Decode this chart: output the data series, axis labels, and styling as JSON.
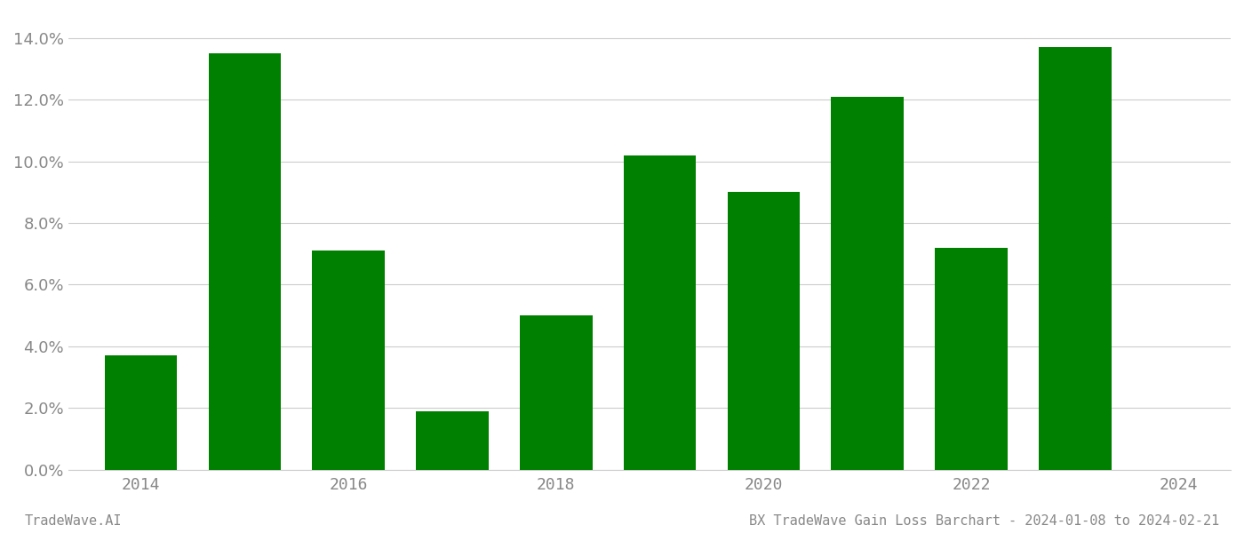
{
  "years": [
    2014,
    2015,
    2016,
    2017,
    2018,
    2019,
    2020,
    2021,
    2022,
    2023
  ],
  "values": [
    0.037,
    0.135,
    0.071,
    0.019,
    0.05,
    0.102,
    0.09,
    0.121,
    0.072,
    0.137
  ],
  "bar_color": "#008000",
  "ylim": [
    0,
    0.148
  ],
  "yticks": [
    0.0,
    0.02,
    0.04,
    0.06,
    0.08,
    0.1,
    0.12,
    0.14
  ],
  "xtick_positions": [
    2014,
    2016,
    2018,
    2020,
    2022,
    2024
  ],
  "xtick_labels": [
    "2014",
    "2016",
    "2018",
    "2020",
    "2022",
    "2024"
  ],
  "footer_left": "TradeWave.AI",
  "footer_right": "BX TradeWave Gain Loss Barchart - 2024-01-08 to 2024-02-21",
  "background_color": "#ffffff",
  "grid_color": "#cccccc",
  "bar_width": 0.7,
  "figsize": [
    14.0,
    6.0
  ],
  "dpi": 100,
  "xlim": [
    2013.3,
    2024.5
  ]
}
